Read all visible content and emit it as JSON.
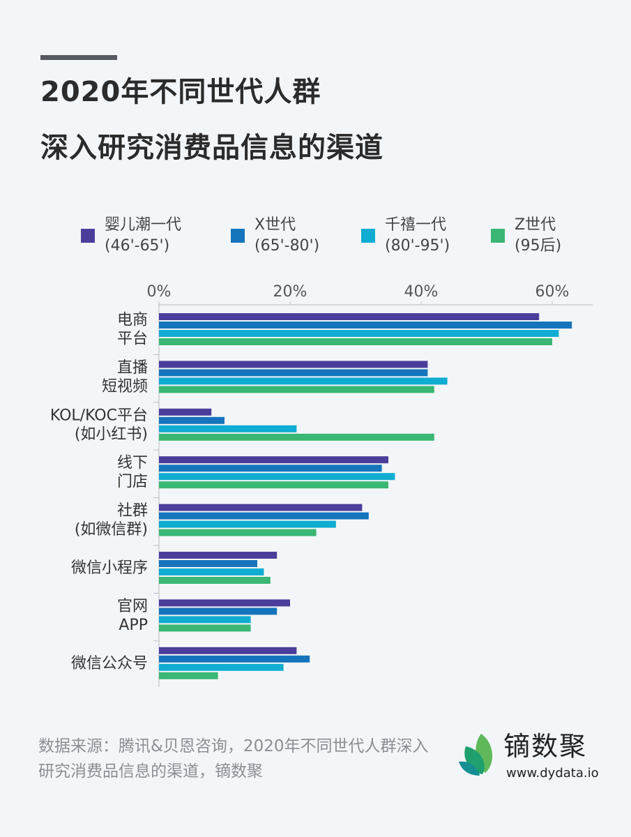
{
  "title_lines": [
    "2020年不同世代人群",
    "深入研究消费品信息的渠道"
  ],
  "legend": [
    {
      "line1": "婴儿潮一代",
      "line2": "(46'-65')",
      "color": "#4a3e9a"
    },
    {
      "line1": "X世代",
      "line2": "(65'-80')",
      "color": "#1574bb"
    },
    {
      "line1": "千禧一代",
      "line2": "(80'-95')",
      "color": "#10acd1"
    },
    {
      "line1": "Z世代",
      "line2": "(95后)",
      "color": "#3ab774"
    }
  ],
  "chart_data": {
    "type": "bar",
    "orientation": "horizontal",
    "categories": [
      [
        "电商",
        "平台"
      ],
      [
        "直播",
        "短视频"
      ],
      [
        "KOL/KOC平台",
        "(如小红书)"
      ],
      [
        "线下",
        "门店"
      ],
      [
        "社群",
        "(如微信群)"
      ],
      [
        "微信小程序"
      ],
      [
        "官网",
        "APP"
      ],
      [
        "微信公众号"
      ]
    ],
    "series": [
      {
        "name": "婴儿潮一代 (46'-65')",
        "values": [
          58,
          41,
          8,
          35,
          31,
          18,
          20,
          21
        ]
      },
      {
        "name": "X世代 (65'-80')",
        "values": [
          63,
          41,
          10,
          34,
          32,
          15,
          18,
          23
        ]
      },
      {
        "name": "千禧一代 (80'-95')",
        "values": [
          61,
          44,
          21,
          36,
          27,
          16,
          14,
          19
        ]
      },
      {
        "name": "Z世代 (95后)",
        "values": [
          60,
          42,
          42,
          35,
          24,
          17,
          14,
          9
        ]
      }
    ],
    "xlim": [
      0,
      66
    ],
    "xticks": [
      0,
      20,
      40,
      60
    ],
    "xtick_labels": [
      "0%",
      "20%",
      "40%",
      "60%"
    ],
    "axis_position": "top",
    "legend_placement": "top",
    "grid": false
  },
  "source": "数据来源：腾讯&贝恩咨询，2020年不同世代人群深入研究消费品信息的渠道，镝数聚",
  "brand": {
    "name": "镝数聚",
    "url": "www.dydata.io"
  }
}
